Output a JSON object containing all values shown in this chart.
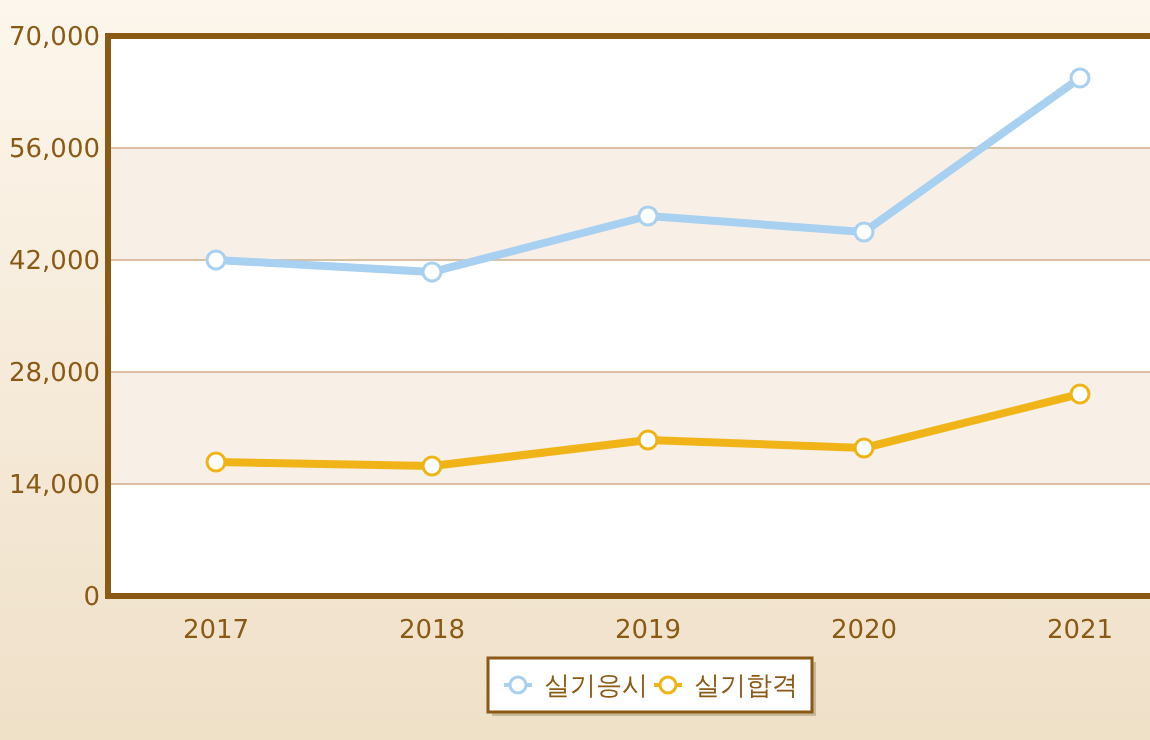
{
  "chart_data": {
    "type": "line",
    "categories": [
      "2017",
      "2018",
      "2019",
      "2020",
      "2021"
    ],
    "series": [
      {
        "name": "실기응시",
        "color": "#a8d0f0",
        "values": [
          42000,
          40500,
          47500,
          45500,
          64750
        ]
      },
      {
        "name": "실기합격",
        "color": "#f0b418",
        "values": [
          16750,
          16250,
          19500,
          18500,
          25250
        ]
      }
    ],
    "ylim": [
      0,
      70000
    ],
    "yticks": [
      0,
      {
        "value": 14000,
        "label": "14,000"
      },
      {
        "value": 28000,
        "label": "28,000"
      },
      {
        "value": 42000,
        "label": "42,000"
      },
      {
        "value": 56000,
        "label": "56,000"
      },
      {
        "value": 70000,
        "label": "70,000"
      }
    ],
    "grid": "y",
    "legend": "bottom",
    "marker": "circle",
    "line_style": "solid"
  }
}
